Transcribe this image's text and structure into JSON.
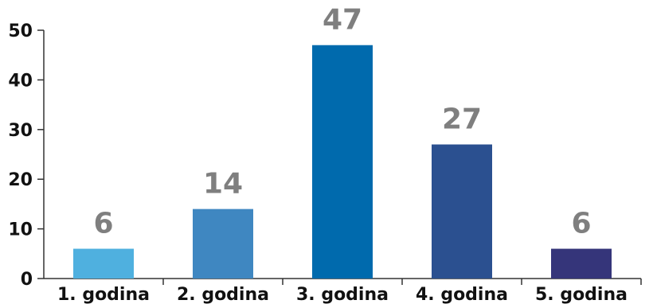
{
  "chart_data": {
    "type": "bar",
    "categories": [
      "1. godina",
      "2. godina",
      "3. godina",
      "4. godina",
      "5. godina"
    ],
    "values": [
      6,
      14,
      47,
      27,
      6
    ],
    "colors": [
      "#4fb0df",
      "#3f87c1",
      "#006aad",
      "#2b5090",
      "#35357a"
    ],
    "data_label_color": "#7f7f7f",
    "ylim": [
      0,
      50
    ],
    "yticks": [
      0,
      10,
      20,
      30,
      40,
      50
    ],
    "title": "",
    "xlabel": "",
    "ylabel": "",
    "grid": false,
    "legend": "none"
  }
}
